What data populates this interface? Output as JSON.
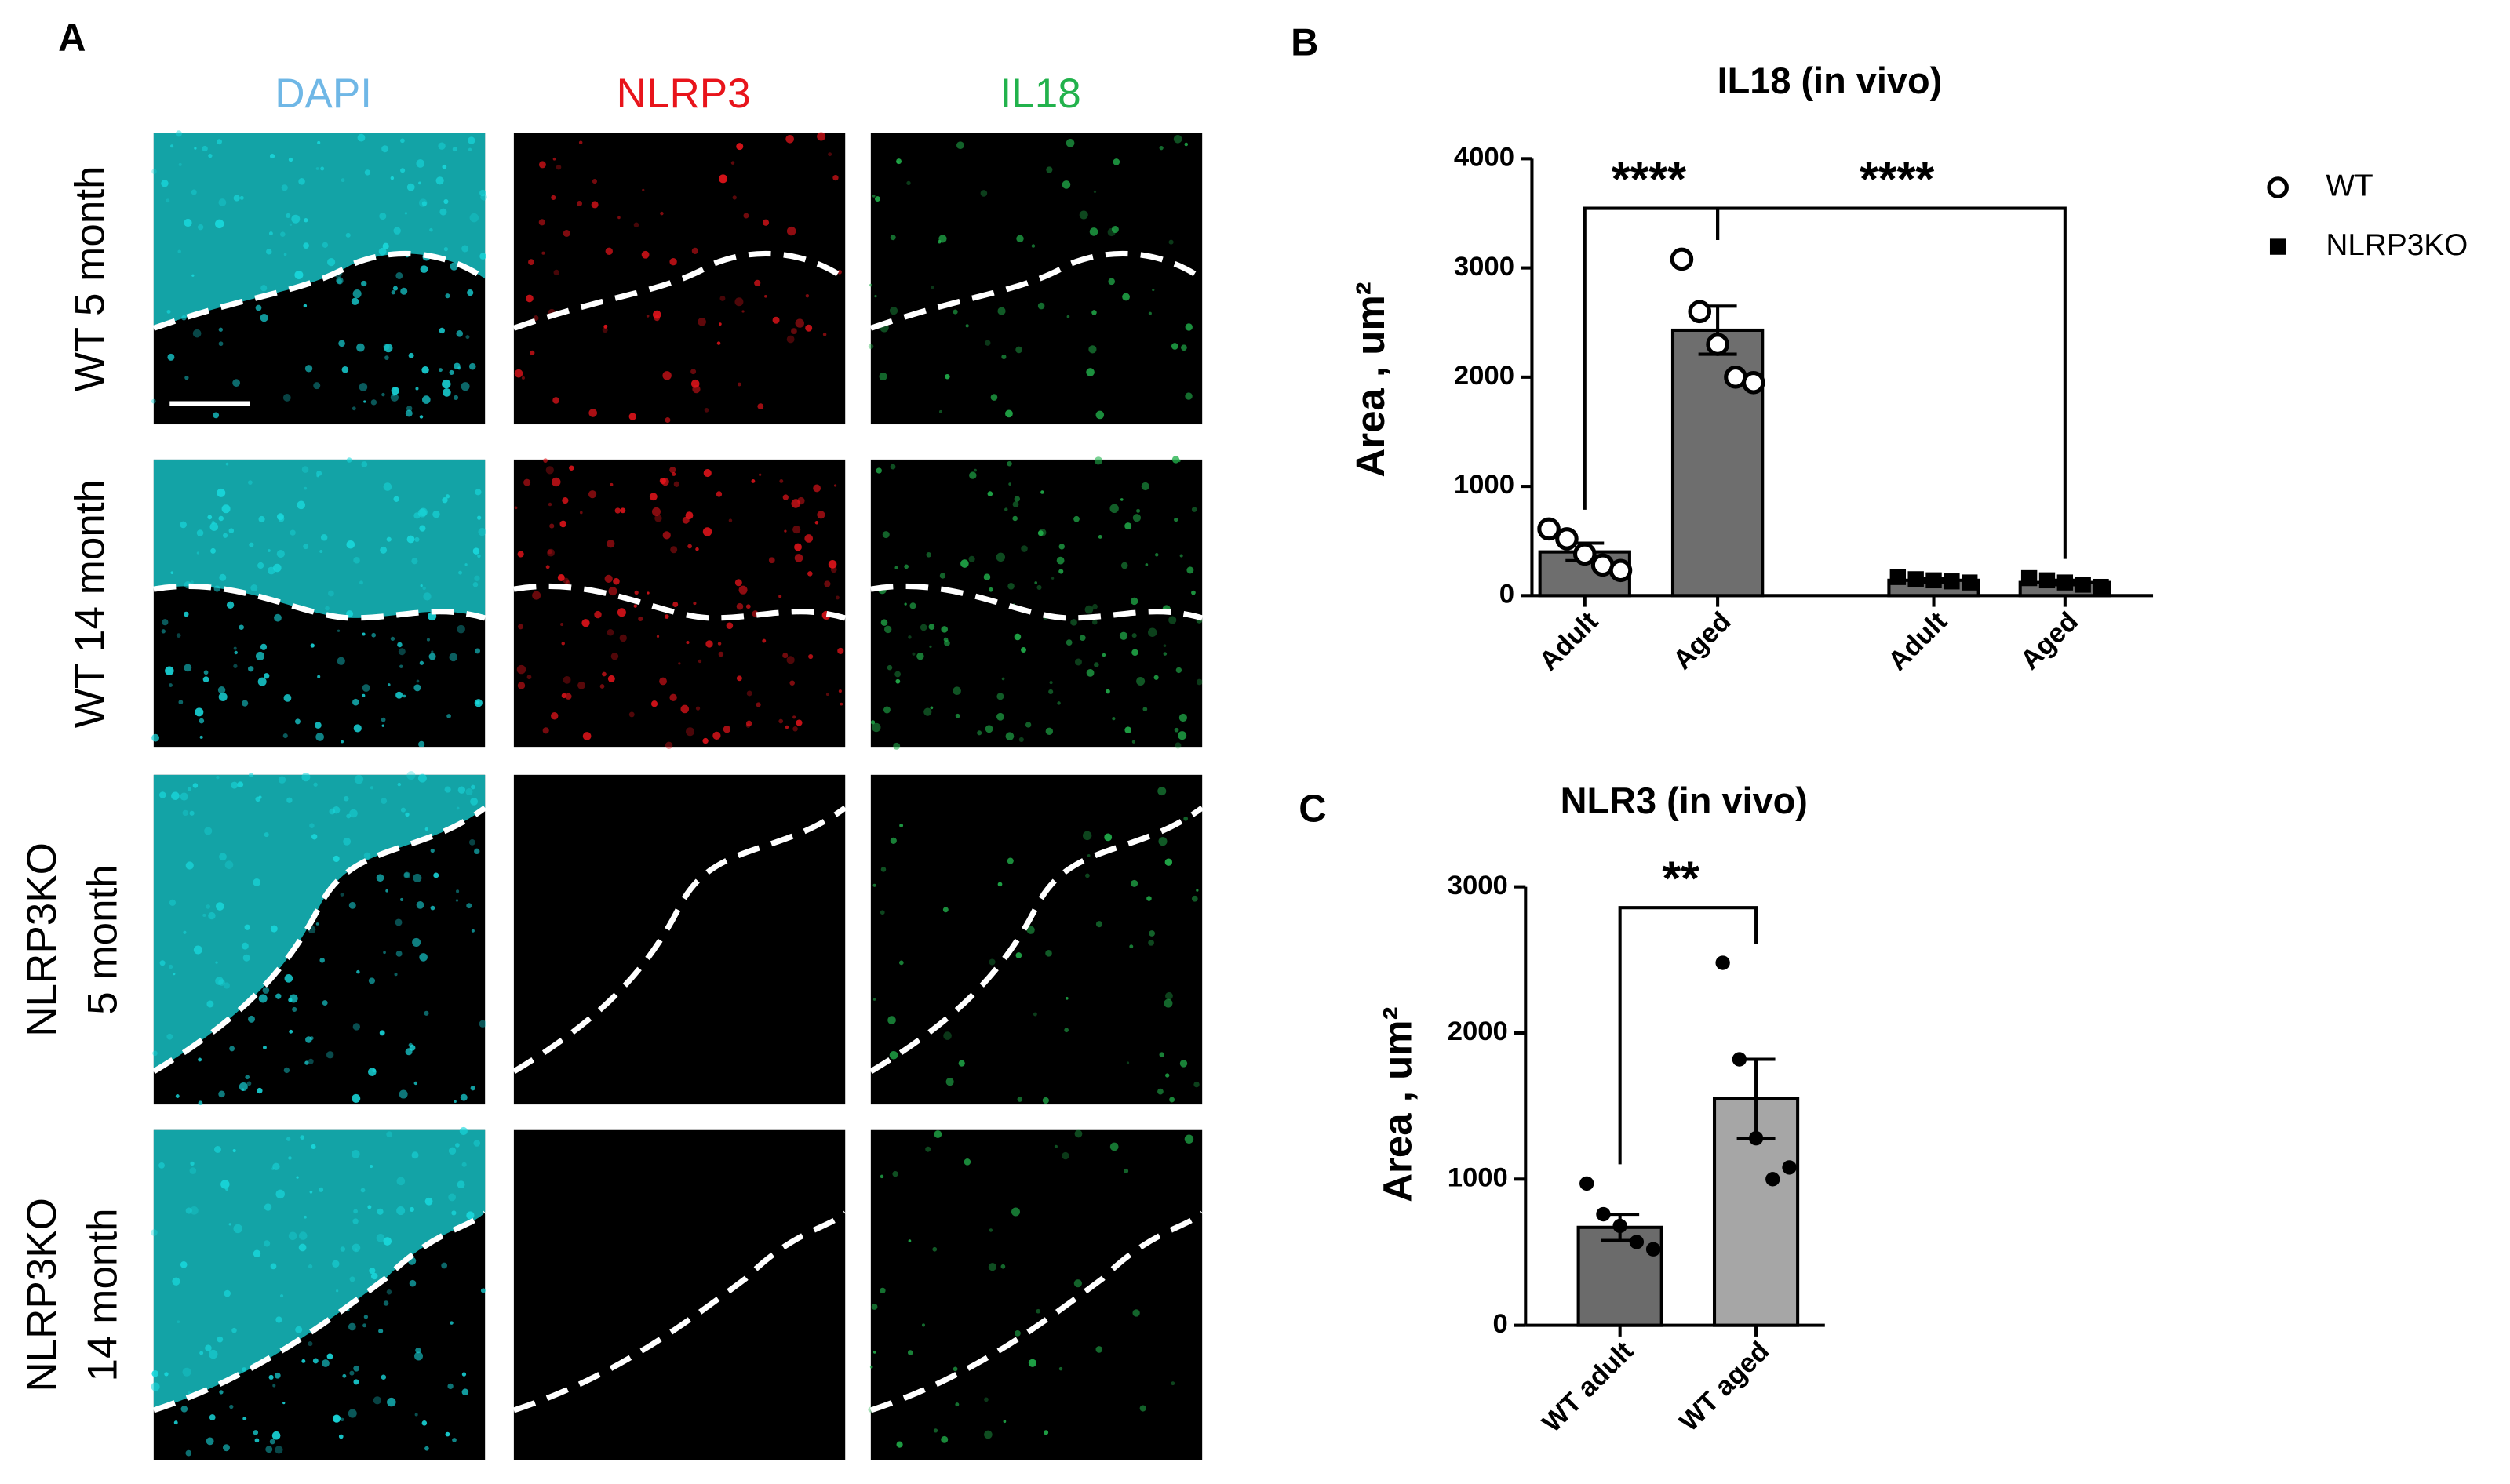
{
  "panel_a": {
    "label": "A",
    "columns": [
      "DAPI",
      "NLRP3",
      "IL18"
    ],
    "rows": [
      [
        "WT 5 month"
      ],
      [
        "WT 14 month"
      ],
      [
        "NLRP3KO",
        "5 month"
      ],
      [
        "NLRP3KO",
        "14 month"
      ]
    ]
  },
  "chart_data": [
    {
      "type": "bar",
      "label": "B",
      "title": "IL18 (in vivo)",
      "y_label": "Area , um²",
      "categories": [
        "Adult",
        "Aged",
        "Adult",
        "Aged"
      ],
      "series": [
        {
          "name": "WT",
          "marker": "circle-open",
          "color": "#6e6e6e",
          "values": [
            400,
            2430,
            null,
            null
          ],
          "errors": [
            80,
            220,
            null,
            null
          ],
          "points": [
            [
              610,
              520,
              380,
              280,
              230
            ],
            [
              3080,
              2600,
              2300,
              2000,
              1950
            ],
            [],
            []
          ]
        },
        {
          "name": "NLRP3KO",
          "marker": "square",
          "color": "#6e6e6e",
          "values": [
            null,
            null,
            140,
            120
          ],
          "errors": [
            null,
            null,
            15,
            20
          ],
          "points": [
            [],
            [],
            [
              170,
              150,
              140,
              130,
              120
            ],
            [
              160,
              140,
              120,
              100,
              80
            ]
          ]
        }
      ],
      "annotations": [
        "****",
        "****"
      ],
      "ylim": [
        0,
        4000
      ],
      "yticks": [
        0,
        1000,
        2000,
        3000,
        4000
      ],
      "legend": "right"
    },
    {
      "type": "bar",
      "label": "C",
      "title": "NLR3 (in vivo)",
      "y_label": "Area , um²",
      "categories": [
        "WT adult",
        "WT aged"
      ],
      "series": [
        {
          "name": "WT",
          "colors": [
            "#6b6b6b",
            "#a6a6a6"
          ],
          "values": [
            670,
            1550
          ],
          "errors": [
            90,
            270
          ],
          "points": [
            [
              970,
              760,
              680,
              570,
              520
            ],
            [
              2480,
              1820,
              1280,
              1000,
              1080
            ]
          ]
        }
      ],
      "annotations": [
        "**"
      ],
      "ylim": [
        0,
        3000
      ],
      "yticks": [
        0,
        1000,
        2000,
        3000
      ]
    }
  ]
}
